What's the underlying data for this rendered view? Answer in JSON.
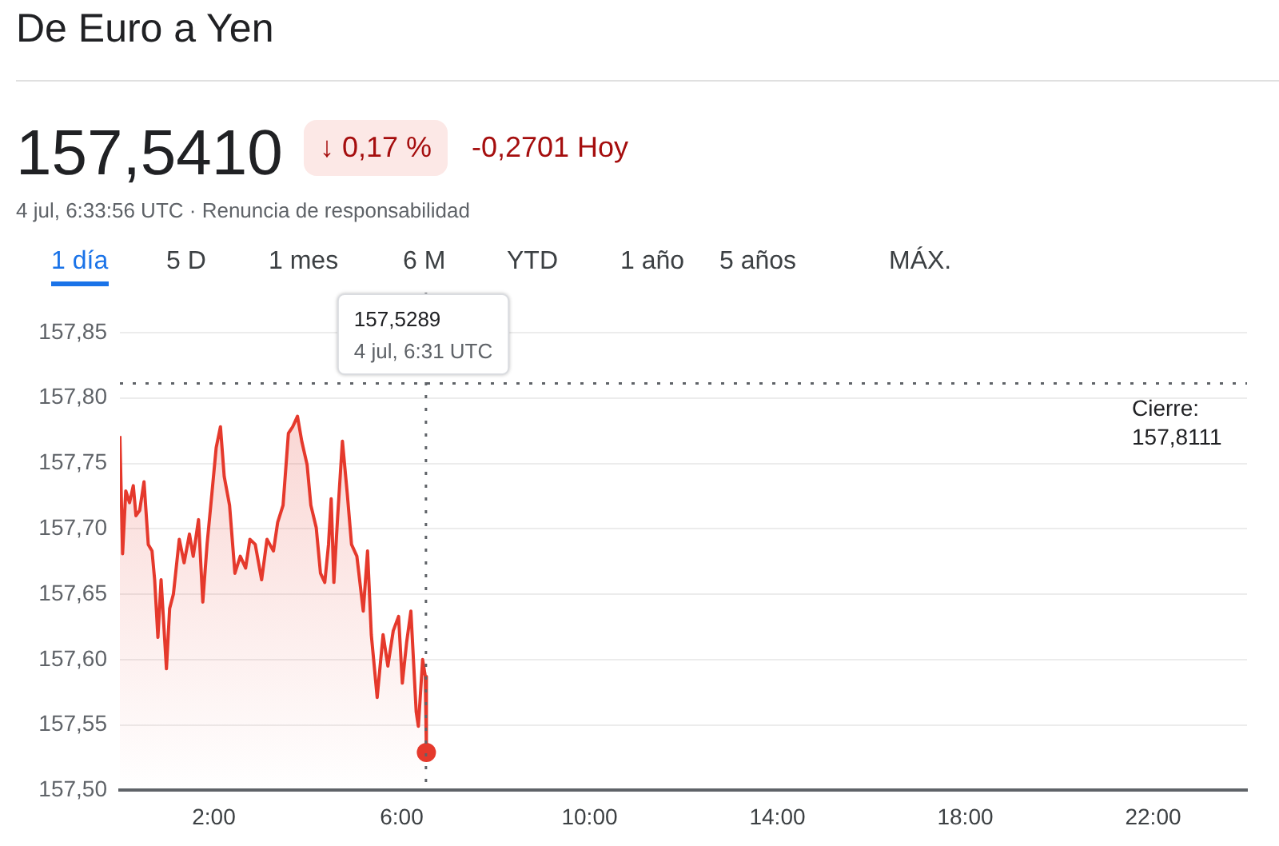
{
  "chart_data": {
    "type": "area",
    "title": "De Euro a Yen",
    "annotations": [
      "157,5410",
      "↓ 0,17 %",
      "-0,2701 Hoy",
      "4 jul, 6:33:56 UTC · Renuncia de responsabilidad",
      "1 día",
      "5 D",
      "1 mes",
      "6 M",
      "YTD",
      "1 año",
      "5 años",
      "MÁX.",
      "157,5289\n4 jul, 6:31 UTC"
    ],
    "x": [
      0,
      0.057,
      0.125,
      0.205,
      0.285,
      0.342,
      0.421,
      0.513,
      0.604,
      0.684,
      0.74,
      0.809,
      0.877,
      0.991,
      1.059,
      1.139,
      1.264,
      1.367,
      1.481,
      1.561,
      1.674,
      1.765,
      1.856,
      1.959,
      2.05,
      2.141,
      2.221,
      2.335,
      2.449,
      2.563,
      2.677,
      2.768,
      2.882,
      3.018,
      3.132,
      3.269,
      3.36,
      3.474,
      3.588,
      3.679,
      3.781,
      3.872,
      3.986,
      4.066,
      4.18,
      4.271,
      4.362,
      4.442,
      4.499,
      4.556,
      4.636,
      4.738,
      4.841,
      4.932,
      5.046,
      5.182,
      5.273,
      5.353,
      5.478,
      5.604,
      5.706,
      5.82,
      5.934,
      6.014,
      6.105,
      6.196,
      6.309,
      6.355,
      6.446,
      6.503,
      6.526
    ],
    "series": [
      {
        "color": "#e5392c",
        "marker": "none",
        "values": [
          157.771,
          157.681,
          157.729,
          157.72,
          157.733,
          157.71,
          157.714,
          157.736,
          157.688,
          157.683,
          157.661,
          157.617,
          157.661,
          157.593,
          157.639,
          157.65,
          157.692,
          157.674,
          157.696,
          157.679,
          157.707,
          157.644,
          157.688,
          157.727,
          157.762,
          157.778,
          157.74,
          157.718,
          157.666,
          157.679,
          157.67,
          157.692,
          157.688,
          157.661,
          157.692,
          157.683,
          157.705,
          157.718,
          157.773,
          157.778,
          157.786,
          157.767,
          157.749,
          157.718,
          157.701,
          157.666,
          157.659,
          157.688,
          157.723,
          157.659,
          157.709,
          157.767,
          157.727,
          157.688,
          157.679,
          157.637,
          157.683,
          157.619,
          157.571,
          157.619,
          157.595,
          157.622,
          157.633,
          157.582,
          157.613,
          157.637,
          157.56,
          157.549,
          157.6,
          157.587,
          157.529
        ]
      }
    ],
    "xlim": [
      0,
      24
    ],
    "xticks": [
      {
        "value": 2,
        "label": "2:00"
      },
      {
        "value": 6,
        "label": "6:00"
      },
      {
        "value": 10,
        "label": "10:00"
      },
      {
        "value": 14,
        "label": "14:00"
      },
      {
        "value": 18,
        "label": "18:00"
      },
      {
        "value": 22,
        "label": "22:00"
      }
    ],
    "ylim": [
      157.5,
      157.85
    ],
    "yticks": [
      {
        "value": 157.5,
        "label": "157,50"
      },
      {
        "value": 157.55,
        "label": "157,55"
      },
      {
        "value": 157.6,
        "label": "157,60"
      },
      {
        "value": 157.65,
        "label": "157,65"
      },
      {
        "value": 157.7,
        "label": "157,70"
      },
      {
        "value": 157.75,
        "label": "157,75"
      },
      {
        "value": 157.8,
        "label": "157,80"
      },
      {
        "value": 157.85,
        "label": "157,85"
      }
    ],
    "ref_lines": [
      {
        "axis": "y",
        "value": 157.8111,
        "label": "Cierre:\n157,8111",
        "color": "#5f6368",
        "line_style": "dotted"
      },
      {
        "axis": "x",
        "value": 6.5167,
        "label": null,
        "color": "#5f6368",
        "line_style": "dotted"
      }
    ],
    "grid": "y",
    "legend": false
  }
}
